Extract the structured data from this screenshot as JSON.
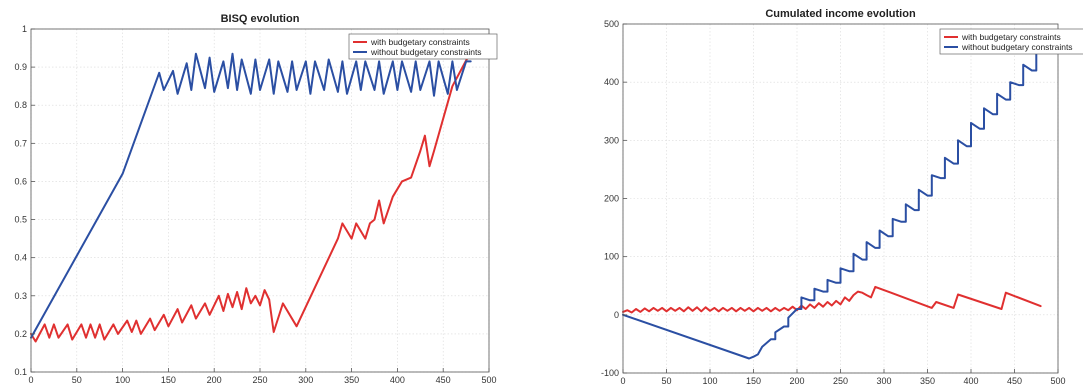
{
  "colors": {
    "with": "#e03030",
    "without": "#2b4fa3"
  },
  "chart_data": [
    {
      "type": "line",
      "title": "BISQ evolution",
      "xlabel": "",
      "ylabel": "",
      "xlim": [
        0,
        500
      ],
      "ylim": [
        0.1,
        1
      ],
      "xticks": [
        0,
        50,
        100,
        150,
        200,
        250,
        300,
        350,
        400,
        450,
        500
      ],
      "yticks": [
        0.1,
        0.2,
        0.3,
        0.4,
        0.5,
        0.6,
        0.7,
        0.8,
        0.9,
        1
      ],
      "grid": true,
      "legend_position": "top-right",
      "series": [
        {
          "name": "with budgetary constraints",
          "color": "#e03030",
          "x": [
            0,
            5,
            15,
            20,
            25,
            30,
            40,
            45,
            55,
            60,
            65,
            70,
            75,
            80,
            90,
            95,
            105,
            110,
            115,
            120,
            130,
            135,
            145,
            150,
            160,
            165,
            175,
            180,
            190,
            195,
            205,
            210,
            215,
            220,
            225,
            230,
            235,
            240,
            245,
            250,
            255,
            260,
            265,
            275,
            290,
            335,
            340,
            350,
            355,
            365,
            370,
            375,
            380,
            385,
            395,
            405,
            415,
            425,
            430,
            435,
            440,
            460,
            480
          ],
          "y": [
            0.2,
            0.18,
            0.225,
            0.19,
            0.225,
            0.19,
            0.225,
            0.185,
            0.225,
            0.19,
            0.225,
            0.19,
            0.225,
            0.185,
            0.225,
            0.2,
            0.235,
            0.205,
            0.235,
            0.2,
            0.24,
            0.21,
            0.25,
            0.22,
            0.265,
            0.23,
            0.275,
            0.24,
            0.28,
            0.25,
            0.3,
            0.26,
            0.305,
            0.27,
            0.31,
            0.265,
            0.32,
            0.28,
            0.3,
            0.275,
            0.315,
            0.29,
            0.205,
            0.28,
            0.22,
            0.45,
            0.49,
            0.45,
            0.49,
            0.45,
            0.49,
            0.5,
            0.55,
            0.49,
            0.56,
            0.6,
            0.61,
            0.68,
            0.72,
            0.64,
            0.68,
            0.85,
            0.94
          ]
        },
        {
          "name": "without budgetary constraints",
          "color": "#2b4fa3",
          "x": [
            0,
            100,
            140,
            145,
            155,
            160,
            170,
            175,
            180,
            190,
            195,
            200,
            210,
            215,
            220,
            225,
            230,
            240,
            245,
            250,
            260,
            265,
            270,
            280,
            285,
            290,
            300,
            305,
            310,
            320,
            325,
            335,
            340,
            345,
            355,
            360,
            365,
            375,
            380,
            385,
            395,
            400,
            405,
            415,
            420,
            425,
            435,
            440,
            445,
            455,
            460,
            465,
            475,
            480
          ],
          "y": [
            0.19,
            0.62,
            0.885,
            0.84,
            0.89,
            0.83,
            0.91,
            0.84,
            0.935,
            0.845,
            0.925,
            0.835,
            0.915,
            0.845,
            0.935,
            0.84,
            0.92,
            0.83,
            0.92,
            0.84,
            0.92,
            0.83,
            0.915,
            0.835,
            0.915,
            0.84,
            0.915,
            0.83,
            0.915,
            0.84,
            0.92,
            0.835,
            0.915,
            0.83,
            0.915,
            0.84,
            0.915,
            0.84,
            0.915,
            0.83,
            0.915,
            0.84,
            0.915,
            0.835,
            0.915,
            0.84,
            0.915,
            0.825,
            0.915,
            0.83,
            0.915,
            0.84,
            0.915,
            0.915
          ]
        }
      ]
    },
    {
      "type": "line",
      "title": "Cumulated income evolution",
      "xlabel": "",
      "ylabel": "",
      "xlim": [
        0,
        500
      ],
      "ylim": [
        -100,
        500
      ],
      "xticks": [
        0,
        50,
        100,
        150,
        200,
        250,
        300,
        350,
        400,
        450,
        500
      ],
      "yticks": [
        -100,
        0,
        100,
        200,
        300,
        400,
        500
      ],
      "grid": true,
      "legend_position": "top-right",
      "series": [
        {
          "name": "with budgetary constraints",
          "color": "#e03030",
          "x": [
            0,
            5,
            10,
            15,
            20,
            25,
            30,
            35,
            40,
            45,
            50,
            55,
            60,
            65,
            70,
            75,
            80,
            85,
            90,
            95,
            100,
            105,
            110,
            115,
            120,
            125,
            130,
            135,
            140,
            145,
            150,
            155,
            160,
            165,
            170,
            175,
            180,
            185,
            190,
            195,
            200,
            205,
            210,
            215,
            220,
            225,
            230,
            235,
            240,
            245,
            250,
            255,
            260,
            265,
            270,
            275,
            280,
            285,
            290,
            355,
            360,
            380,
            385,
            435,
            440,
            480
          ],
          "y": [
            5,
            8,
            4,
            10,
            5,
            11,
            6,
            12,
            7,
            12,
            6,
            12,
            7,
            12,
            6,
            13,
            7,
            13,
            6,
            13,
            7,
            12,
            6,
            12,
            7,
            12,
            6,
            12,
            7,
            12,
            6,
            12,
            7,
            12,
            6,
            12,
            7,
            12,
            8,
            14,
            8,
            16,
            10,
            18,
            12,
            20,
            14,
            22,
            16,
            24,
            18,
            30,
            24,
            34,
            40,
            38,
            34,
            30,
            48,
            12,
            22,
            12,
            35,
            10,
            38,
            15
          ]
        },
        {
          "name": "without budgetary constraints",
          "color": "#2b4fa3",
          "x": [
            0,
            145,
            145,
            150,
            155,
            160,
            160,
            170,
            175,
            175,
            185,
            190,
            190,
            200,
            205,
            205,
            215,
            220,
            220,
            230,
            235,
            235,
            245,
            250,
            250,
            260,
            265,
            265,
            275,
            280,
            280,
            290,
            295,
            295,
            305,
            310,
            310,
            320,
            325,
            325,
            335,
            340,
            340,
            350,
            355,
            355,
            365,
            370,
            370,
            380,
            385,
            385,
            395,
            400,
            400,
            410,
            415,
            415,
            425,
            430,
            430,
            440,
            445,
            445,
            455,
            460,
            460,
            470,
            475,
            475
          ],
          "y": [
            0,
            -75,
            -75,
            -72,
            -68,
            -55,
            -55,
            -42,
            -42,
            -30,
            -20,
            -20,
            -5,
            10,
            10,
            30,
            25,
            25,
            45,
            40,
            40,
            60,
            55,
            55,
            80,
            75,
            75,
            105,
            95,
            95,
            125,
            115,
            115,
            145,
            135,
            135,
            165,
            160,
            160,
            190,
            180,
            180,
            215,
            205,
            205,
            240,
            235,
            235,
            270,
            260,
            260,
            300,
            290,
            290,
            330,
            320,
            320,
            355,
            345,
            345,
            380,
            370,
            370,
            400,
            395,
            395,
            430,
            420,
            420,
            465
          ]
        }
      ]
    }
  ]
}
